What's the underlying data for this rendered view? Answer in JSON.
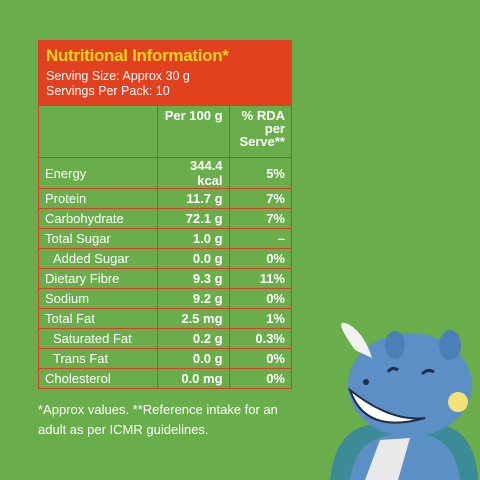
{
  "header": {
    "title": "Nutritional Information*",
    "serving_size": "Serving Size: Approx 30 g",
    "servings_per_pack": "Servings Per Pack: 10"
  },
  "table": {
    "columns": [
      "Per 100 g",
      "% RDA per Serve**"
    ],
    "rows": [
      [
        "Energy",
        "344.4 kcal",
        "5%"
      ],
      [
        "Protein",
        "11.7 g",
        "7%"
      ],
      [
        "Carbohydrate",
        "72.1 g",
        "7%"
      ],
      [
        "Total Sugar",
        "1.0 g",
        "–"
      ],
      [
        "Added Sugar",
        "0.0 g",
        "0%"
      ],
      [
        "Dietary Fibre",
        "9.3 g",
        "11%"
      ],
      [
        "Sodium",
        "9.2 g",
        "0%"
      ],
      [
        "Total Fat",
        "2.5 mg",
        "1%"
      ],
      [
        "Saturated Fat",
        "0.2 g",
        "0.3%"
      ],
      [
        "Trans Fat",
        "0.0 g",
        "0%"
      ],
      [
        "Cholesterol",
        "0.0 mg",
        "0%"
      ]
    ]
  },
  "footnote": "*Approx values. **Reference intake for an adult as per ICMR guidelines."
}
